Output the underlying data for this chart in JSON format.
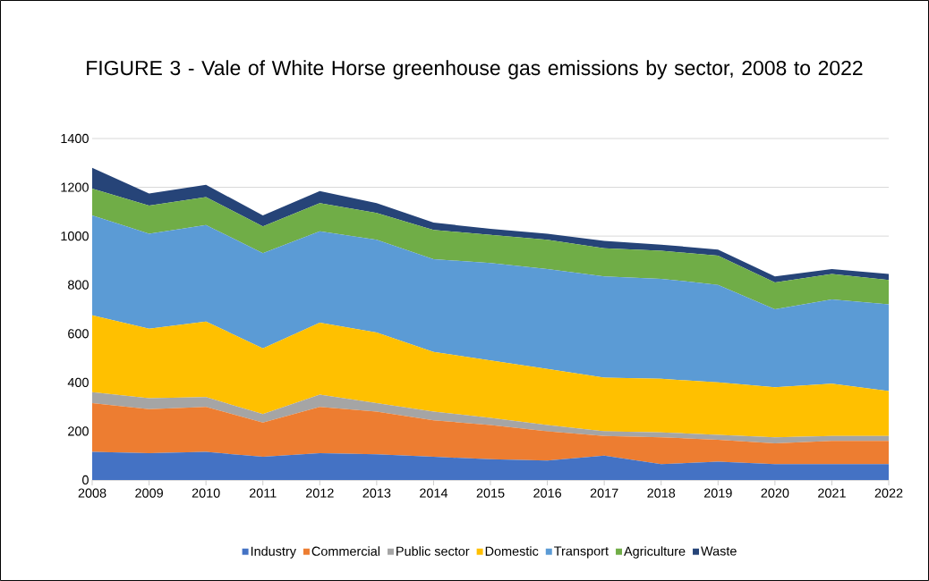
{
  "chart_data": {
    "type": "area",
    "stacked": true,
    "title": "FIGURE 3 - Vale of White Horse greenhouse gas emissions by sector, 2008 to 2022",
    "categories": [
      "2008",
      "2009",
      "2010",
      "2011",
      "2012",
      "2013",
      "2014",
      "2015",
      "2016",
      "2017",
      "2018",
      "2019",
      "2020",
      "2021",
      "2022"
    ],
    "series": [
      {
        "name": "Industry",
        "color": "#4472c4",
        "values": [
          115,
          110,
          115,
          95,
          110,
          105,
          95,
          85,
          80,
          100,
          65,
          75,
          65,
          65,
          65
        ]
      },
      {
        "name": "Commercial",
        "color": "#ed7d31",
        "values": [
          200,
          180,
          185,
          140,
          190,
          175,
          150,
          140,
          120,
          80,
          110,
          90,
          85,
          95,
          95
        ]
      },
      {
        "name": "Public sector",
        "color": "#a5a5a5",
        "values": [
          45,
          45,
          40,
          35,
          50,
          35,
          35,
          30,
          25,
          20,
          20,
          20,
          25,
          20,
          20
        ]
      },
      {
        "name": "Domestic",
        "color": "#ffc000",
        "values": [
          315,
          285,
          310,
          270,
          295,
          290,
          245,
          235,
          230,
          220,
          220,
          215,
          205,
          215,
          185
        ]
      },
      {
        "name": "Transport",
        "color": "#5b9bd5",
        "values": [
          410,
          390,
          395,
          390,
          375,
          380,
          380,
          400,
          410,
          415,
          410,
          400,
          320,
          345,
          355
        ]
      },
      {
        "name": "Agriculture",
        "color": "#70ad47",
        "values": [
          110,
          115,
          115,
          110,
          115,
          110,
          120,
          115,
          120,
          115,
          115,
          120,
          110,
          105,
          100
        ]
      },
      {
        "name": "Waste",
        "color": "#264478",
        "values": [
          85,
          50,
          50,
          45,
          50,
          40,
          30,
          25,
          25,
          30,
          25,
          25,
          25,
          20,
          25
        ]
      }
    ],
    "ylim": [
      0,
      1400
    ],
    "yticks": [
      0,
      200,
      400,
      600,
      800,
      1000,
      1200,
      1400
    ],
    "grid": "y",
    "legend": "bottom"
  }
}
